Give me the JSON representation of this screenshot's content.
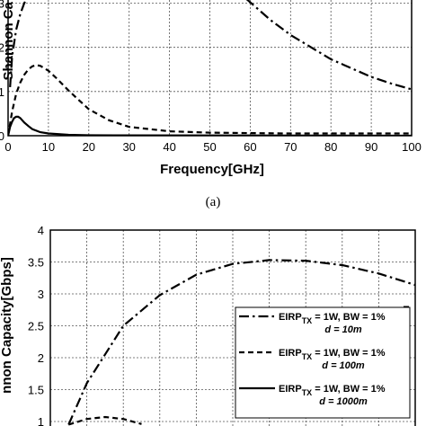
{
  "chart_data": [
    {
      "type": "line",
      "panel": "top",
      "xlabel": "Frequency[GHz]",
      "ylabel": "Shannon Ca",
      "xlim": [
        0,
        100
      ],
      "ylim": [
        0,
        3
      ],
      "xticks": [
        "0",
        "10",
        "20",
        "30",
        "40",
        "50",
        "60",
        "70",
        "80",
        "90",
        "100"
      ],
      "yticks": [
        "0",
        "1",
        "2",
        "3"
      ],
      "grid": true,
      "caption": "(a)",
      "series": [
        {
          "style": "dashdot",
          "x": [
            0.5,
            1,
            2,
            3,
            4,
            5
          ],
          "y": [
            1.1,
            1.8,
            2.4,
            2.75,
            3.0,
            3.15
          ],
          "x2": [
            59,
            65,
            70,
            80,
            90,
            95,
            100
          ],
          "y2": [
            3.1,
            2.62,
            2.28,
            1.73,
            1.33,
            1.18,
            1.05
          ]
        },
        {
          "style": "dash",
          "x": [
            0,
            1,
            2,
            3,
            4,
            5,
            6,
            7,
            8,
            10,
            12,
            15,
            20,
            25,
            30,
            40,
            50,
            60,
            70,
            80,
            100
          ],
          "y": [
            0.0,
            0.55,
            0.95,
            1.2,
            1.38,
            1.5,
            1.57,
            1.6,
            1.58,
            1.47,
            1.3,
            1.02,
            0.6,
            0.35,
            0.2,
            0.1,
            0.07,
            0.06,
            0.05,
            0.05,
            0.05
          ]
        },
        {
          "style": "solid",
          "x": [
            0,
            0.5,
            1,
            1.5,
            2,
            2.5,
            3,
            4,
            5,
            6,
            8,
            10,
            15,
            20,
            100
          ],
          "y": [
            0.0,
            0.2,
            0.32,
            0.4,
            0.43,
            0.43,
            0.4,
            0.3,
            0.22,
            0.15,
            0.08,
            0.05,
            0.02,
            0.01,
            0.0
          ]
        }
      ]
    },
    {
      "type": "line",
      "panel": "bottom",
      "ylabel": "nnon Capacity[Gbps]",
      "ylim": [
        0.9,
        4
      ],
      "xlim": [
        0,
        100
      ],
      "yticks": [
        "1",
        "1.5",
        "2",
        "2.5",
        "3",
        "3.5",
        "4"
      ],
      "grid": true,
      "legend_position": "right",
      "legend": [
        {
          "style": "dashdot",
          "line1": "EIRP",
          "sub": "TX",
          "rest": " = 1W, BW = 1%",
          "line2": "d = 10m"
        },
        {
          "style": "dash",
          "line1": "EIRP",
          "sub": "TX",
          "rest": " = 1W, BW = 1%",
          "line2": "d = 100m"
        },
        {
          "style": "solid",
          "line1": "EIRP",
          "sub": "TX",
          "rest": " = 1W, BW = 1%",
          "line2": "d = 1000m"
        }
      ],
      "series": [
        {
          "style": "dashdot",
          "x": [
            5,
            10,
            20,
            30,
            40,
            50,
            60,
            70,
            80,
            90,
            100
          ],
          "y": [
            0.95,
            1.6,
            2.5,
            2.98,
            3.3,
            3.47,
            3.53,
            3.52,
            3.45,
            3.32,
            3.14
          ]
        },
        {
          "style": "dash",
          "x": [
            5,
            10,
            15,
            20,
            25
          ],
          "y": [
            0.95,
            1.04,
            1.07,
            1.04,
            0.96
          ]
        }
      ]
    }
  ]
}
